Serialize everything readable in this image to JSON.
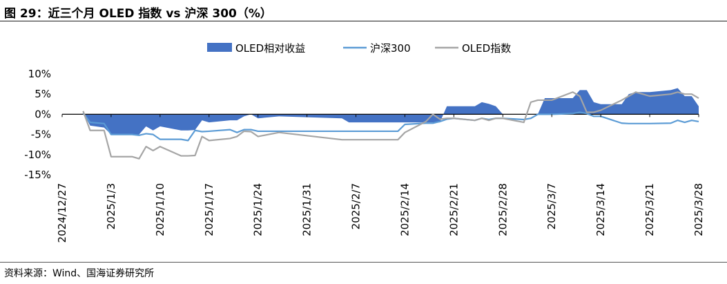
{
  "figure": {
    "title": "图 29：近三个月 OLED 指数 vs 沪深 300（%）",
    "source": "资料来源：Wind、国海证券研究所"
  },
  "chart_data": {
    "type": "area+line",
    "title": "",
    "xlabel": "",
    "ylabel": "",
    "ylim": [
      -15,
      10
    ],
    "yticks": [
      10,
      5,
      0,
      -5,
      -10,
      -15
    ],
    "ytick_labels": [
      "10%",
      "5%",
      "0%",
      "-5%",
      "-10%",
      "-15%"
    ],
    "x_dates": [
      "2024/12/30",
      "2024/12/31",
      "2025/1/2",
      "2025/1/3",
      "2025/1/6",
      "2025/1/7",
      "2025/1/8",
      "2025/1/9",
      "2025/1/10",
      "2025/1/13",
      "2025/1/14",
      "2025/1/15",
      "2025/1/16",
      "2025/1/17",
      "2025/1/20",
      "2025/1/21",
      "2025/1/22",
      "2025/1/23",
      "2025/1/24",
      "2025/1/27",
      "2025/2/5",
      "2025/2/6",
      "2025/2/7",
      "2025/2/10",
      "2025/2/11",
      "2025/2/12",
      "2025/2/13",
      "2025/2/14",
      "2025/2/17",
      "2025/2/18",
      "2025/2/19",
      "2025/2/20",
      "2025/2/21",
      "2025/2/24",
      "2025/2/25",
      "2025/2/26",
      "2025/2/27",
      "2025/2/28",
      "2025/3/3",
      "2025/3/4",
      "2025/3/5",
      "2025/3/6",
      "2025/3/7",
      "2025/3/10",
      "2025/3/11",
      "2025/3/12",
      "2025/3/13",
      "2025/3/14",
      "2025/3/17",
      "2025/3/18",
      "2025/3/19",
      "2025/3/20",
      "2025/3/21",
      "2025/3/24",
      "2025/3/25",
      "2025/3/26",
      "2025/3/27",
      "2025/3/28"
    ],
    "x_tick_labels": [
      "2024/12/27",
      "2025/1/3",
      "2025/1/10",
      "2025/1/17",
      "2025/1/24",
      "2025/1/31",
      "2025/2/7",
      "2025/2/14",
      "2025/2/21",
      "2025/2/28",
      "2025/3/7",
      "2025/3/14",
      "2025/3/21",
      "2025/3/28"
    ],
    "x_tick_offsets": [
      0,
      7,
      14,
      21,
      28,
      35,
      42,
      49,
      56,
      63,
      70,
      77,
      84,
      91
    ],
    "x_day_offsets": [
      3,
      4,
      6,
      7,
      10,
      11,
      12,
      13,
      14,
      17,
      18,
      19,
      20,
      21,
      24,
      25,
      26,
      27,
      28,
      31,
      40,
      41,
      42,
      45,
      46,
      47,
      48,
      49,
      52,
      53,
      54,
      55,
      56,
      59,
      60,
      61,
      62,
      63,
      66,
      67,
      68,
      69,
      70,
      73,
      74,
      75,
      76,
      77,
      80,
      81,
      82,
      83,
      84,
      87,
      88,
      89,
      90,
      91
    ],
    "series": [
      {
        "name": "OLED相对收益",
        "kind": "area",
        "color": "#4472C4",
        "values": [
          0.5,
          -2.8,
          -3.3,
          -5.0,
          -5.0,
          -5.0,
          -3.0,
          -4.0,
          -3.0,
          -4.0,
          -4.0,
          -3.9,
          -1.5,
          -2.0,
          -1.5,
          -1.5,
          -0.5,
          0.0,
          -1.0,
          -0.5,
          -1.0,
          -2.0,
          -2.0,
          -2.0,
          -2.0,
          -2.0,
          -2.0,
          -2.0,
          -2.0,
          -2.0,
          -2.0,
          2.0,
          2.0,
          2.0,
          3.0,
          2.6,
          2.0,
          0.0,
          0.0,
          0.0,
          0.0,
          4.0,
          4.0,
          4.0,
          6.0,
          6.0,
          3.0,
          2.5,
          2.5,
          5.0,
          5.5,
          5.5,
          5.5,
          6.0,
          6.5,
          4.5,
          4.5,
          2.0
        ]
      },
      {
        "name": "沪深300",
        "kind": "line",
        "color": "#5B9BD5",
        "values": [
          0.3,
          -2.0,
          -2.3,
          -5.0,
          -5.0,
          -5.2,
          -4.8,
          -5.0,
          -6.2,
          -6.2,
          -6.5,
          -4.0,
          -4.3,
          -4.2,
          -3.8,
          -4.5,
          -3.8,
          -3.8,
          -4.2,
          -4.2,
          -4.2,
          -4.2,
          -4.2,
          -4.2,
          -4.2,
          -4.2,
          -4.2,
          -2.5,
          -2.2,
          -2.2,
          -1.8,
          -1.2,
          -1.0,
          -1.5,
          -1.0,
          -1.3,
          -1.0,
          -1.0,
          -1.3,
          -1.0,
          0.0,
          0.0,
          0.0,
          0.2,
          0.5,
          0.2,
          -0.5,
          -0.5,
          -2.2,
          -2.3,
          -2.3,
          -2.3,
          -2.3,
          -2.2,
          -1.5,
          -2.0,
          -1.5,
          -1.8
        ]
      },
      {
        "name": "OLED指数",
        "kind": "line",
        "color": "#A5A5A5",
        "values": [
          0.8,
          -4.0,
          -4.0,
          -10.5,
          -10.5,
          -11.0,
          -8.0,
          -9.0,
          -8.0,
          -10.3,
          -10.3,
          -10.2,
          -5.5,
          -6.5,
          -6.0,
          -5.5,
          -4.2,
          -4.3,
          -5.5,
          -4.5,
          -6.3,
          -6.3,
          -6.3,
          -6.3,
          -6.3,
          -6.3,
          -6.3,
          -4.5,
          -1.8,
          0.0,
          -1.2,
          -1.0,
          -1.0,
          -1.5,
          -1.0,
          -1.5,
          -1.0,
          -1.0,
          -2.0,
          3.0,
          3.5,
          3.5,
          3.5,
          5.5,
          4.5,
          0.5,
          0.5,
          1.0,
          3.5,
          4.5,
          5.5,
          5.0,
          4.5,
          5.0,
          5.5,
          5.0,
          5.0,
          4.0
        ]
      }
    ],
    "legend": {
      "position": "top-center",
      "entries": [
        "OLED相对收益",
        "沪深300",
        "OLED指数"
      ]
    }
  }
}
